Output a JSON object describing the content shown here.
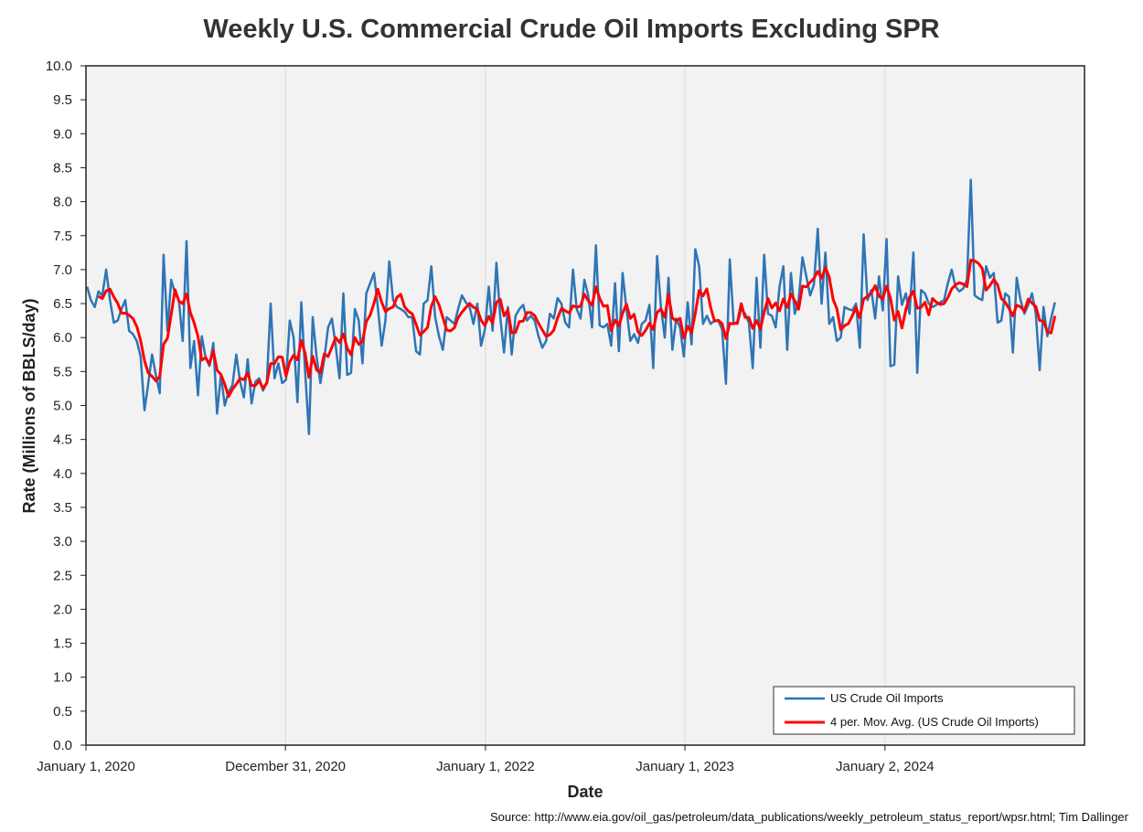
{
  "chart_data": {
    "type": "line",
    "title": "Weekly U.S. Commercial Crude Oil Imports Excluding SPR",
    "xlabel": "Date",
    "ylabel": "Rate (Millions of BBLS/day)",
    "source": "Source: http://www.eia.gov/oil_gas/petroleum/data_publications/weekly_petroleum_status_report/wpsr.html; Tim Dallinger",
    "ylim": [
      0,
      10
    ],
    "ytick_step": 0.5,
    "yticks": [
      "0.0",
      "0.5",
      "1.0",
      "1.5",
      "2.0",
      "2.5",
      "3.0",
      "3.5",
      "4.0",
      "4.5",
      "5.0",
      "5.5",
      "6.0",
      "6.5",
      "7.0",
      "7.5",
      "8.0",
      "8.5",
      "9.0",
      "9.5",
      "10.0"
    ],
    "x_start": "2020-01-01",
    "x_end": "2025-01-01",
    "xticks": [
      {
        "date": "2020-01-01",
        "label": "January 1, 2020"
      },
      {
        "date": "2020-12-31",
        "label": "December 31, 2020"
      },
      {
        "date": "2022-01-01",
        "label": "January 1, 2022"
      },
      {
        "date": "2023-01-01",
        "label": "January 1, 2023"
      },
      {
        "date": "2024-01-02",
        "label": "January 2, 2024"
      }
    ],
    "grid": true,
    "legend_position": "bottom-right",
    "first_date": "2020-01-03",
    "series": [
      {
        "name": "US Crude Oil Imports",
        "color": "#2e75b6",
        "values": [
          6.75,
          6.55,
          6.45,
          6.68,
          6.62,
          7.0,
          6.55,
          6.22,
          6.25,
          6.42,
          6.55,
          6.1,
          6.05,
          5.95,
          5.72,
          4.93,
          5.32,
          5.75,
          5.45,
          5.18,
          7.22,
          6.1,
          6.85,
          6.65,
          6.55,
          5.95,
          7.42,
          5.55,
          5.95,
          5.15,
          6.02,
          5.7,
          5.58,
          5.92,
          4.88,
          5.45,
          5.0,
          5.2,
          5.3,
          5.75,
          5.35,
          5.12,
          5.68,
          5.03,
          5.35,
          5.4,
          5.22,
          5.35,
          6.5,
          5.4,
          5.62,
          5.33,
          5.38,
          6.25,
          6.0,
          5.05,
          6.52,
          5.5,
          4.58,
          6.3,
          5.72,
          5.33,
          5.68,
          6.15,
          6.28,
          5.88,
          5.4,
          6.65,
          5.45,
          5.48,
          6.42,
          6.25,
          5.62,
          6.65,
          6.8,
          6.95,
          6.45,
          5.88,
          6.25,
          7.12,
          6.55,
          6.45,
          6.42,
          6.38,
          6.3,
          6.3,
          5.8,
          5.75,
          6.5,
          6.55,
          7.05,
          6.3,
          6.02,
          5.82,
          6.3,
          6.25,
          6.2,
          6.42,
          6.62,
          6.52,
          6.45,
          6.2,
          6.5,
          5.88,
          6.12,
          6.75,
          6.1,
          7.1,
          6.3,
          5.78,
          6.45,
          5.75,
          6.32,
          6.42,
          6.48,
          6.25,
          6.32,
          6.25,
          6.02,
          5.85,
          5.95,
          6.35,
          6.28,
          6.58,
          6.5,
          6.22,
          6.15,
          7.0,
          6.42,
          6.28,
          6.85,
          6.62,
          6.15,
          7.36,
          6.18,
          6.15,
          6.2,
          5.88,
          6.8,
          5.8,
          6.95,
          6.42,
          5.95,
          6.05,
          5.92,
          6.2,
          6.25,
          6.48,
          5.55,
          7.2,
          6.45,
          6.0,
          6.88,
          5.82,
          6.28,
          6.15,
          5.72,
          6.52,
          5.9,
          7.3,
          7.05,
          6.2,
          6.32,
          6.2,
          6.25,
          6.25,
          6.12,
          5.32,
          7.15,
          6.22,
          6.2,
          6.42,
          6.35,
          6.22,
          5.55,
          6.88,
          5.85,
          7.22,
          6.35,
          6.32,
          6.15,
          6.75,
          7.05,
          5.82,
          6.95,
          6.35,
          6.55,
          7.18,
          6.9,
          6.62,
          6.78,
          7.6,
          6.5,
          7.25,
          6.2,
          6.3,
          5.95,
          6.0,
          6.45,
          6.42,
          6.4,
          6.5,
          5.85,
          7.52,
          6.55,
          6.7,
          6.28,
          6.9,
          6.4,
          7.45,
          5.58,
          5.6,
          6.9,
          6.48,
          6.65,
          6.35,
          7.25,
          5.48,
          6.7,
          6.65,
          6.5,
          6.45,
          6.48,
          6.52,
          6.55,
          6.8,
          7.0,
          6.75,
          6.68,
          6.72,
          6.85,
          8.32,
          6.62,
          6.58,
          6.55,
          7.05,
          6.88,
          6.95,
          6.22,
          6.25,
          6.65,
          6.6,
          5.78,
          6.88,
          6.55,
          6.35,
          6.48,
          6.65,
          6.35,
          5.52,
          6.45,
          6.02,
          6.28,
          6.52
        ]
      },
      {
        "name": "4 per. Mov. Avg. (US Crude Oil Imports)",
        "color": "#ff0000",
        "computed": "4-period moving average of US Crude Oil Imports"
      }
    ]
  }
}
